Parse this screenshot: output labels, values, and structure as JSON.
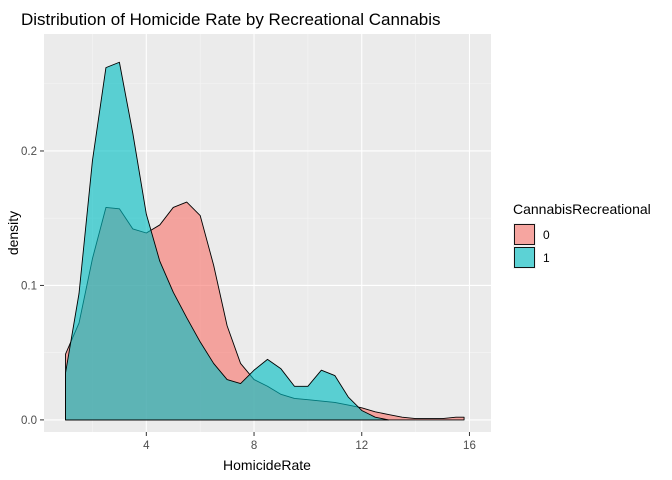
{
  "chart_data": {
    "type": "area",
    "subtype": "density",
    "title": "Distribution of Homicide Rate by Recreational Cannabis",
    "xlabel": "HomicideRate",
    "ylabel": "density",
    "xlim": [
      0.2,
      16.8
    ],
    "ylim": [
      -0.009,
      0.287
    ],
    "xticks": [
      4,
      8,
      12,
      16
    ],
    "yticks": [
      0.0,
      0.1,
      0.2
    ],
    "ytick_labels": [
      "0.0",
      "0.1",
      "0.2"
    ],
    "grid": true,
    "legend": {
      "title": "CannabisRecreational",
      "position": "right",
      "entries": [
        "0",
        "1"
      ]
    },
    "series": [
      {
        "name": "0",
        "color": "#F8766D",
        "x": [
          1.0,
          1.5,
          2.0,
          2.5,
          3.0,
          3.5,
          4.0,
          4.5,
          5.0,
          5.5,
          6.0,
          6.5,
          7.0,
          7.5,
          8.0,
          8.5,
          9.0,
          9.5,
          10.0,
          10.5,
          11.0,
          11.5,
          12.0,
          12.5,
          13.0,
          13.5,
          14.0,
          14.5,
          15.0,
          15.5,
          15.8
        ],
        "y": [
          0.049,
          0.072,
          0.12,
          0.158,
          0.157,
          0.142,
          0.139,
          0.145,
          0.158,
          0.162,
          0.152,
          0.115,
          0.07,
          0.042,
          0.03,
          0.025,
          0.019,
          0.016,
          0.015,
          0.014,
          0.013,
          0.011,
          0.009,
          0.006,
          0.004,
          0.002,
          0.001,
          0.001,
          0.001,
          0.002,
          0.002
        ]
      },
      {
        "name": "1",
        "color": "#00BFC4",
        "x": [
          1.0,
          1.5,
          2.0,
          2.5,
          3.0,
          3.5,
          4.0,
          4.5,
          5.0,
          5.5,
          6.0,
          6.5,
          7.0,
          7.5,
          8.0,
          8.5,
          9.0,
          9.5,
          10.0,
          10.5,
          11.0,
          11.5,
          12.0,
          12.3,
          12.5,
          13.0
        ],
        "y": [
          0.035,
          0.094,
          0.193,
          0.262,
          0.266,
          0.213,
          0.153,
          0.118,
          0.095,
          0.076,
          0.058,
          0.042,
          0.03,
          0.027,
          0.037,
          0.045,
          0.038,
          0.025,
          0.025,
          0.037,
          0.033,
          0.017,
          0.007,
          0.004,
          0.002,
          0.0
        ]
      }
    ]
  }
}
